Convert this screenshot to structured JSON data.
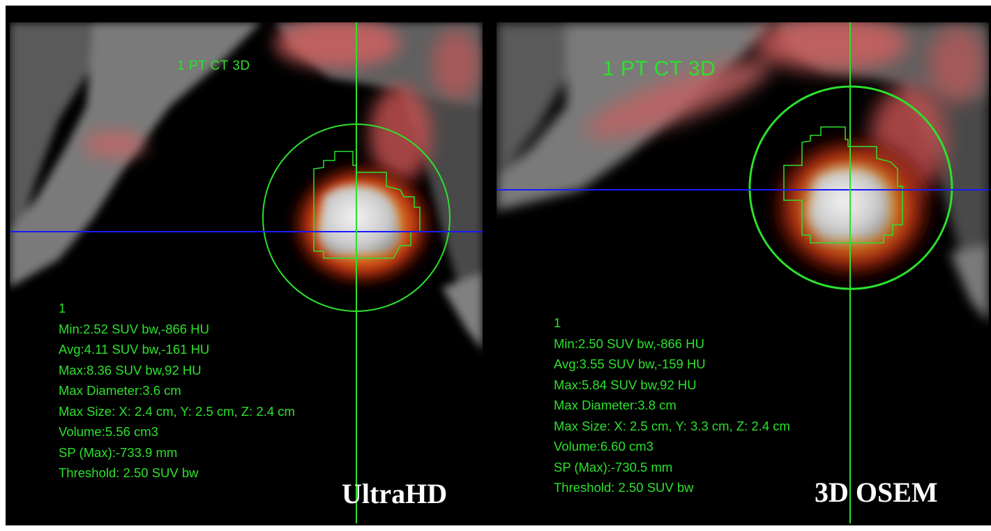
{
  "panels": [
    {
      "series_label": "1 PT CT 3D",
      "roi_number": "1",
      "stats": [
        "Min:2.52 SUV bw,-866 HU",
        "Avg:4.11 SUV bw,-161 HU",
        "Max:8.36 SUV bw,92 HU",
        "Max Diameter:3.6 cm",
        "Max Size: X: 2.4  cm, Y: 2.5  cm, Z: 2.4  cm",
        "Volume:5.56 cm3",
        "SP (Max):-733.9 mm",
        "Threshold: 2.50 SUV bw"
      ],
      "method": "UltraHD"
    },
    {
      "series_label": "1 PT CT 3D",
      "roi_number": "1",
      "stats": [
        "Min:2.50 SUV bw,-866 HU",
        "Avg:3.55 SUV bw,-159 HU",
        "Max:5.84 SUV bw,92 HU",
        "Max Diameter:3.8 cm",
        "Max Size: X: 2.5  cm, Y: 3.3  cm, Z: 2.4  cm",
        "Volume:6.60 cm3",
        "SP (Max):-730.5 mm",
        "Threshold: 2.50 SUV bw"
      ],
      "method": "3D OSEM"
    }
  ],
  "colors": {
    "overlay_green": "#2de02d",
    "crosshair_blue": "#1a1aff",
    "background": "#000000"
  }
}
